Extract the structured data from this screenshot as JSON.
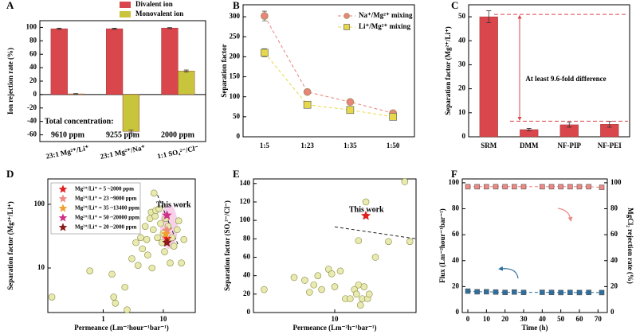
{
  "chart_data": [
    {
      "label": "A",
      "type": "bar",
      "categories": [
        "23:1 Mg²⁺/Li⁺",
        "23:1 Mg²⁺/Na⁺",
        "1:1 SO₄²⁻/Cl⁻"
      ],
      "series": [
        {
          "name": "Divalent ion",
          "color": "#d9464c",
          "values": [
            98,
            98,
            99
          ],
          "errors": [
            0.8,
            0.8,
            0.8
          ]
        },
        {
          "name": "Monovalent ion",
          "color": "#c8c43c",
          "values": [
            1,
            -55,
            35
          ],
          "errors": [
            0.5,
            2,
            1.5
          ]
        }
      ],
      "ylabel": "Ion rejection rate (%)",
      "ylim": [
        -70,
        110
      ],
      "yticks": [
        -60,
        -40,
        -20,
        0,
        20,
        40,
        60,
        80,
        100
      ],
      "annotations": [
        "Total concentration:",
        "9610 ppm",
        "9255 ppm",
        "2000 ppm"
      ]
    },
    {
      "label": "B",
      "type": "line",
      "categories": [
        "1:5",
        "1:23",
        "1:35",
        "1:50"
      ],
      "series": [
        {
          "name": "Na⁺/Mg²⁺ mixing",
          "color": "#e8847a",
          "marker": "circle",
          "values": [
            302,
            112,
            87,
            59
          ],
          "errors": [
            12,
            5,
            5,
            5
          ]
        },
        {
          "name": "Li⁺/Mg²⁺ mixing",
          "color": "#e6d84a",
          "marker": "square",
          "values": [
            210,
            80,
            67,
            50
          ],
          "errors": [
            10,
            5,
            5,
            5
          ]
        }
      ],
      "ylabel": "Separation factor",
      "ylim": [
        0,
        330
      ],
      "yticks": [
        0,
        50,
        100,
        150,
        200,
        250,
        300
      ]
    },
    {
      "label": "C",
      "type": "bar",
      "categories": [
        "SRM",
        "DMM",
        "NF-PIP",
        "NF-PEI"
      ],
      "series": [
        {
          "color": "#d9464c",
          "values": [
            50,
            3,
            5,
            5.2
          ],
          "errors": [
            2.5,
            0.5,
            1,
            1.2
          ]
        }
      ],
      "ylabel": "Separation factor (Mg²⁺/Li⁺)",
      "ylim": [
        0,
        55
      ],
      "yticks": [
        0,
        10,
        20,
        30,
        40,
        50
      ],
      "reference_lines": [
        51,
        6.5
      ],
      "annotations": [
        "At least 9.6-fold difference"
      ]
    },
    {
      "label": "D",
      "type": "scatter",
      "xscale": "log",
      "yscale": "log",
      "xlabel": "Permeance (Lm⁻²hour⁻¹bar⁻¹)",
      "ylabel": "Separation factor (Mg²⁺/Li⁺)",
      "xlim": [
        0.12,
        34
      ],
      "xticks": [
        1,
        10
      ],
      "ylim": [
        2,
        250
      ],
      "yticks": [
        10,
        100
      ],
      "series": [
        {
          "color": "#e8eab0",
          "marker": "circle",
          "x": [
            0.14,
            0.6,
            1.4,
            1.5,
            1.6,
            2.5,
            2.3,
            3,
            3.5,
            3.8,
            4.2,
            4.5,
            5,
            5.3,
            5.5,
            6,
            6.3,
            6.5,
            6.8,
            7,
            7.3,
            7.5,
            8,
            8.5,
            9,
            9.5,
            10,
            10.5,
            11,
            12,
            13,
            14,
            15,
            17,
            18,
            20,
            22
          ],
          "values": [
            3.5,
            9,
            8,
            3.5,
            2.8,
            2.2,
            5,
            14,
            25,
            11,
            30,
            20,
            45,
            28,
            16,
            60,
            75,
            10,
            40,
            150,
            65,
            80,
            30,
            85,
            50,
            25,
            35,
            18,
            60,
            45,
            12,
            30,
            22,
            40,
            55,
            12,
            28
          ]
        },
        {
          "name": "Mg²⁺/Li⁺ = 5 ~2000 ppm",
          "color": "#e02020",
          "marker": "star",
          "x": [
            11.5
          ],
          "values": [
            29
          ]
        },
        {
          "name": "Mg²⁺/Li⁺ = 23 ~9000 ppm",
          "color": "#f08a80",
          "marker": "star",
          "x": [
            11.5
          ],
          "values": [
            39
          ]
        },
        {
          "name": "Mg²⁺/Li⁺ = 35 ~13400 ppm",
          "color": "#f0a030",
          "marker": "star",
          "x": [
            11
          ],
          "values": [
            34
          ]
        },
        {
          "name": "Mg²⁺/Li⁺ = 50 ~20000 ppm",
          "color": "#d0308a",
          "marker": "star",
          "x": [
            11.5
          ],
          "values": [
            67
          ]
        },
        {
          "name": "Mg²⁺/Li⁺ = 20 ~2000 ppm",
          "color": "#8b1a1a",
          "marker": "star",
          "x": [
            11.5
          ],
          "values": [
            25
          ]
        }
      ],
      "trend_line": {
        "x": [
          8,
          18
        ],
        "values": [
          140,
          22
        ]
      },
      "annotations": [
        "This work"
      ]
    },
    {
      "label": "E",
      "type": "scatter",
      "xscale": "log",
      "xlabel": "Permeance (Lm⁻²h⁻¹bar⁻¹)",
      "ylabel": "Separation factor (SO₄²⁻/Cl⁻)",
      "xlim": [
        2.5,
        40
      ],
      "xticks": [
        10
      ],
      "ylim": [
        0,
        145
      ],
      "yticks": [
        0,
        20,
        40,
        60,
        80,
        100,
        120,
        140
      ],
      "series": [
        {
          "color": "#e8eab0",
          "marker": "circle",
          "x": [
            3,
            5,
            6,
            6.5,
            7,
            7.5,
            8,
            9,
            9.5,
            10,
            11,
            12,
            13,
            14,
            14.5,
            15,
            16,
            16.5,
            15.5,
            17.5,
            18,
            15,
            17,
            20,
            25,
            33,
            36
          ],
          "values": [
            25,
            38,
            35,
            22,
            30,
            40,
            25,
            47,
            42,
            28,
            45,
            15,
            15,
            25,
            20,
            30,
            15,
            28,
            8,
            15,
            20,
            78,
            120,
            60,
            77,
            142,
            77
          ]
        },
        {
          "color": "#e02020",
          "marker": "star",
          "x": [
            17
          ],
          "values": [
            105
          ]
        }
      ],
      "trend_line": {
        "x": [
          10,
          40
        ],
        "values": [
          93,
          80
        ]
      },
      "annotations": [
        "This work"
      ]
    },
    {
      "label": "F",
      "type": "line",
      "xlabel": "Time (h)",
      "ylabel": "Flux (Lm⁻²hour⁻¹bar⁻¹)",
      "y2label": "MgCl₂ rejection rate (%)",
      "x": [
        0,
        5,
        10,
        15,
        20,
        25,
        30,
        40,
        45,
        50,
        55,
        60,
        65,
        72
      ],
      "xlim": [
        -3,
        75
      ],
      "xticks": [
        0,
        10,
        20,
        30,
        40,
        50,
        60,
        70
      ],
      "ylim": [
        0,
        103
      ],
      "yticks": [
        0,
        20,
        40,
        60,
        80,
        100
      ],
      "y2lim": [
        0,
        103
      ],
      "y2ticks": [
        0,
        20,
        40,
        60,
        80,
        100
      ],
      "series": [
        {
          "color": "#2f6f9f",
          "marker": "square",
          "values": [
            16.5,
            16,
            16,
            15.8,
            15.5,
            15.8,
            15.5,
            15.6,
            15.5,
            15.4,
            15.5,
            15.4,
            15.5,
            15.4
          ]
        },
        {
          "color": "#ee8a86",
          "marker": "square",
          "axis": "y2",
          "values": [
            97,
            97,
            97,
            97,
            97,
            97,
            97,
            97,
            97,
            97,
            97,
            97,
            97,
            96.5
          ]
        }
      ]
    }
  ]
}
